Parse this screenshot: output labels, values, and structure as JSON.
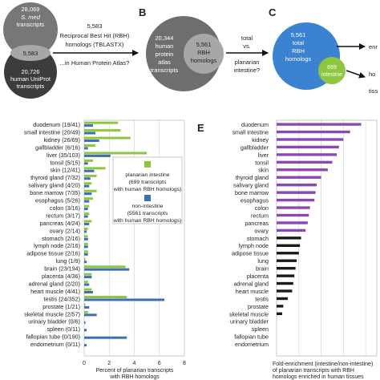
{
  "panel_letters": {
    "b": "B",
    "c": "C",
    "e": "E"
  },
  "panel_a": {
    "smed_count": "28,069",
    "smed_line1": "S. med",
    "smed_line2": "transcripts",
    "overlap": "5,583",
    "human_count": "20,726",
    "human_line1": "human UniProt",
    "human_line2": "transcripts",
    "arrow_count": "5,583",
    "arrow_line1": "Reciprocal Best Hit (RBH)",
    "arrow_line2": "homologs (TBLASTX)",
    "arrow_question": "...in Human Protein Atlas?"
  },
  "panel_b": {
    "outer_count": "20,344",
    "outer_line1": "human",
    "outer_line2": "protein",
    "outer_line3": "atlas",
    "outer_line4": "transcripts",
    "inner_count": "5,561",
    "inner_line1": "RBH",
    "inner_line2": "homologs",
    "q_line1": "total",
    "q_line2": "vs.",
    "q_line3": "planarian",
    "q_line4": "intestine?"
  },
  "panel_c": {
    "outer_count": "5,561",
    "outer_line1": "total",
    "outer_line2": "RBH",
    "outer_line3": "homologs",
    "inner_count": "699",
    "inner_line1": "intestine",
    "out1": "enr",
    "out2": "ho",
    "out3": "tiss"
  },
  "colors": {
    "intestine": "#8dc63f",
    "non_intestine": "#3b6fb6",
    "enriched": "#8b47b5",
    "not_enriched": "#1a1a1a"
  },
  "chart_data": [
    {
      "type": "bar",
      "orientation": "horizontal",
      "categories": [
        "duodenum (19/41)",
        "small intestine (20/49)",
        "kidney (26/69)",
        "gallbladder (6/16)",
        "liver (35/103)",
        "tonsil (5/15)",
        "skin (12/41)",
        "thyroid gland (7/32)",
        "salivary gland (4/20)",
        "bone marrow (7/35)",
        "esophagus (5/26)",
        "colon (3/16)",
        "rectum (3/17)",
        "pancreas (4/24)",
        "ovary (2/14)",
        "stomach (2/16)",
        "lymph node (2/16)",
        "adipose tissue (2/16)",
        "lung (1/9)",
        "brain (23/194)",
        "placenta (4/36)",
        "adrenal gland (2/20)",
        "heart muscle (4/41)",
        "testis (24/352)",
        "prostate (1/21)",
        "skeletal muscle (2/57)",
        "urinary bladder (0/6)",
        "spleen (0/11)",
        "fallopian tube (0/190)",
        "endometrium (0/11)"
      ],
      "series": [
        {
          "name": "planarian intestine (699 transcripts with human RBH homologs)",
          "color": "#8dc63f",
          "values": [
            2.7,
            2.9,
            3.7,
            0.9,
            5.0,
            0.7,
            1.7,
            1.0,
            0.6,
            1.0,
            0.7,
            0.4,
            0.4,
            0.6,
            0.3,
            0.3,
            0.3,
            0.3,
            0.1,
            3.3,
            0.6,
            0.3,
            0.6,
            3.4,
            0.1,
            0.3,
            0.0,
            0.0,
            0.0,
            0.0
          ]
        },
        {
          "name": "non-intestine (5561 transcripts with human RBH homologs)",
          "color": "#3b6fb6",
          "values": [
            0.7,
            0.9,
            1.2,
            0.3,
            2.1,
            0.3,
            0.8,
            0.5,
            0.4,
            0.6,
            0.4,
            0.3,
            0.3,
            0.4,
            0.2,
            0.3,
            0.3,
            0.3,
            0.2,
            3.6,
            0.6,
            0.4,
            0.7,
            6.4,
            0.4,
            1.0,
            0.1,
            0.2,
            3.4,
            0.2
          ]
        }
      ],
      "xlim": [
        0,
        8
      ],
      "xticks": [
        "0",
        "2",
        "4",
        "6",
        "8"
      ],
      "xlabel": [
        "Percent of planarian transcripts",
        "with RBH homologs",
        "enriched in human tissues"
      ]
    },
    {
      "type": "bar",
      "orientation": "horizontal",
      "categories": [
        "duodenum",
        "small intestine",
        "kidney",
        "gallbladder",
        "liver",
        "tonsil",
        "skin",
        "thyroid gland",
        "salivary gland",
        "bone marrow",
        "esophagus",
        "colon",
        "rectum",
        "pancreas",
        "ovary",
        "stomach",
        "lymph node",
        "adipose tissue",
        "lung",
        "brain",
        "placenta",
        "adrenal gland",
        "heart muscle",
        "testis",
        "prostate",
        "skeletal muscle",
        "urinary bladder",
        "spleen",
        "fallopian tube",
        "endometrium"
      ],
      "values": [
        3.8,
        3.3,
        3.0,
        2.8,
        2.7,
        2.5,
        2.3,
        2.0,
        1.8,
        1.75,
        1.7,
        1.5,
        1.45,
        1.4,
        1.3,
        1.1,
        1.05,
        1.0,
        0.9,
        0.85,
        0.8,
        0.75,
        0.7,
        0.5,
        0.3,
        0.25,
        0.0,
        0.0,
        0.0,
        0.0
      ],
      "enriched_count": 15,
      "xlabel": [
        "Fold-enrichment (intestine/non-intestine)",
        "of planarian transcripts with RBH",
        "homologs enriched in human tissues"
      ]
    }
  ]
}
